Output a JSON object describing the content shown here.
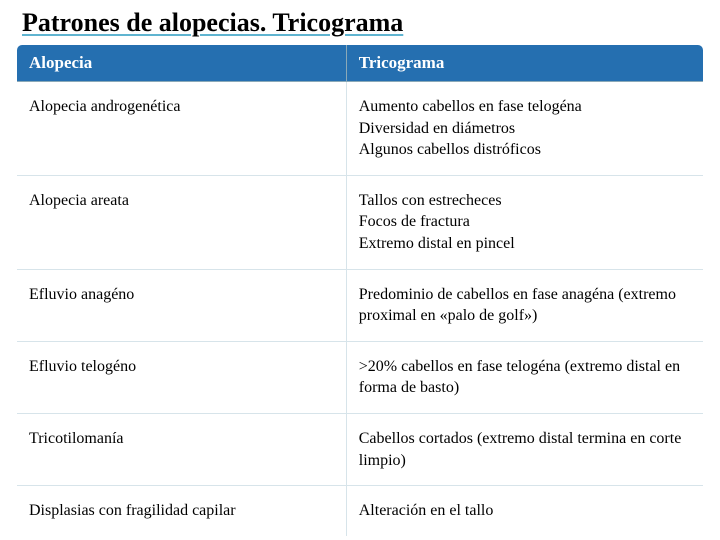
{
  "title": "Patrones de alopecias. Tricograma",
  "table": {
    "headers": [
      "Alopecia",
      "Tricograma"
    ],
    "rows": [
      {
        "c1": "Alopecia androgenética",
        "c2": "Aumento cabellos en fase telogéna\nDiversidad en diámetros\nAlgunos cabellos distróficos"
      },
      {
        "c1": "Alopecia areata",
        "c2": "Tallos con estrecheces\nFocos de fractura\nExtremo distal en pincel"
      },
      {
        "c1": "Efluvio anagéno",
        "c2": "Predominio de cabellos en fase anagéna (extremo proximal en «palo de golf»)"
      },
      {
        "c1": "Efluvio telogéno",
        "c2": ">20% cabellos en fase telogéna (extremo distal en forma de basto)"
      },
      {
        "c1": "Tricotilomanía",
        "c2": "Cabellos cortados (extremo distal termina en corte limpio)"
      },
      {
        "c1": "Displasias con fragilidad capilar",
        "c2": "Alteración en el tallo"
      }
    ],
    "header_bg": "#256fb0",
    "header_fg": "#ffffff",
    "cell_bg": "#ffffff",
    "cell_fg": "#000000",
    "border_color": "#d7e4ea",
    "title_underline_color": "#5fb4d0",
    "title_fontsize": 26,
    "header_fontsize": 17,
    "cell_fontsize": 16
  }
}
